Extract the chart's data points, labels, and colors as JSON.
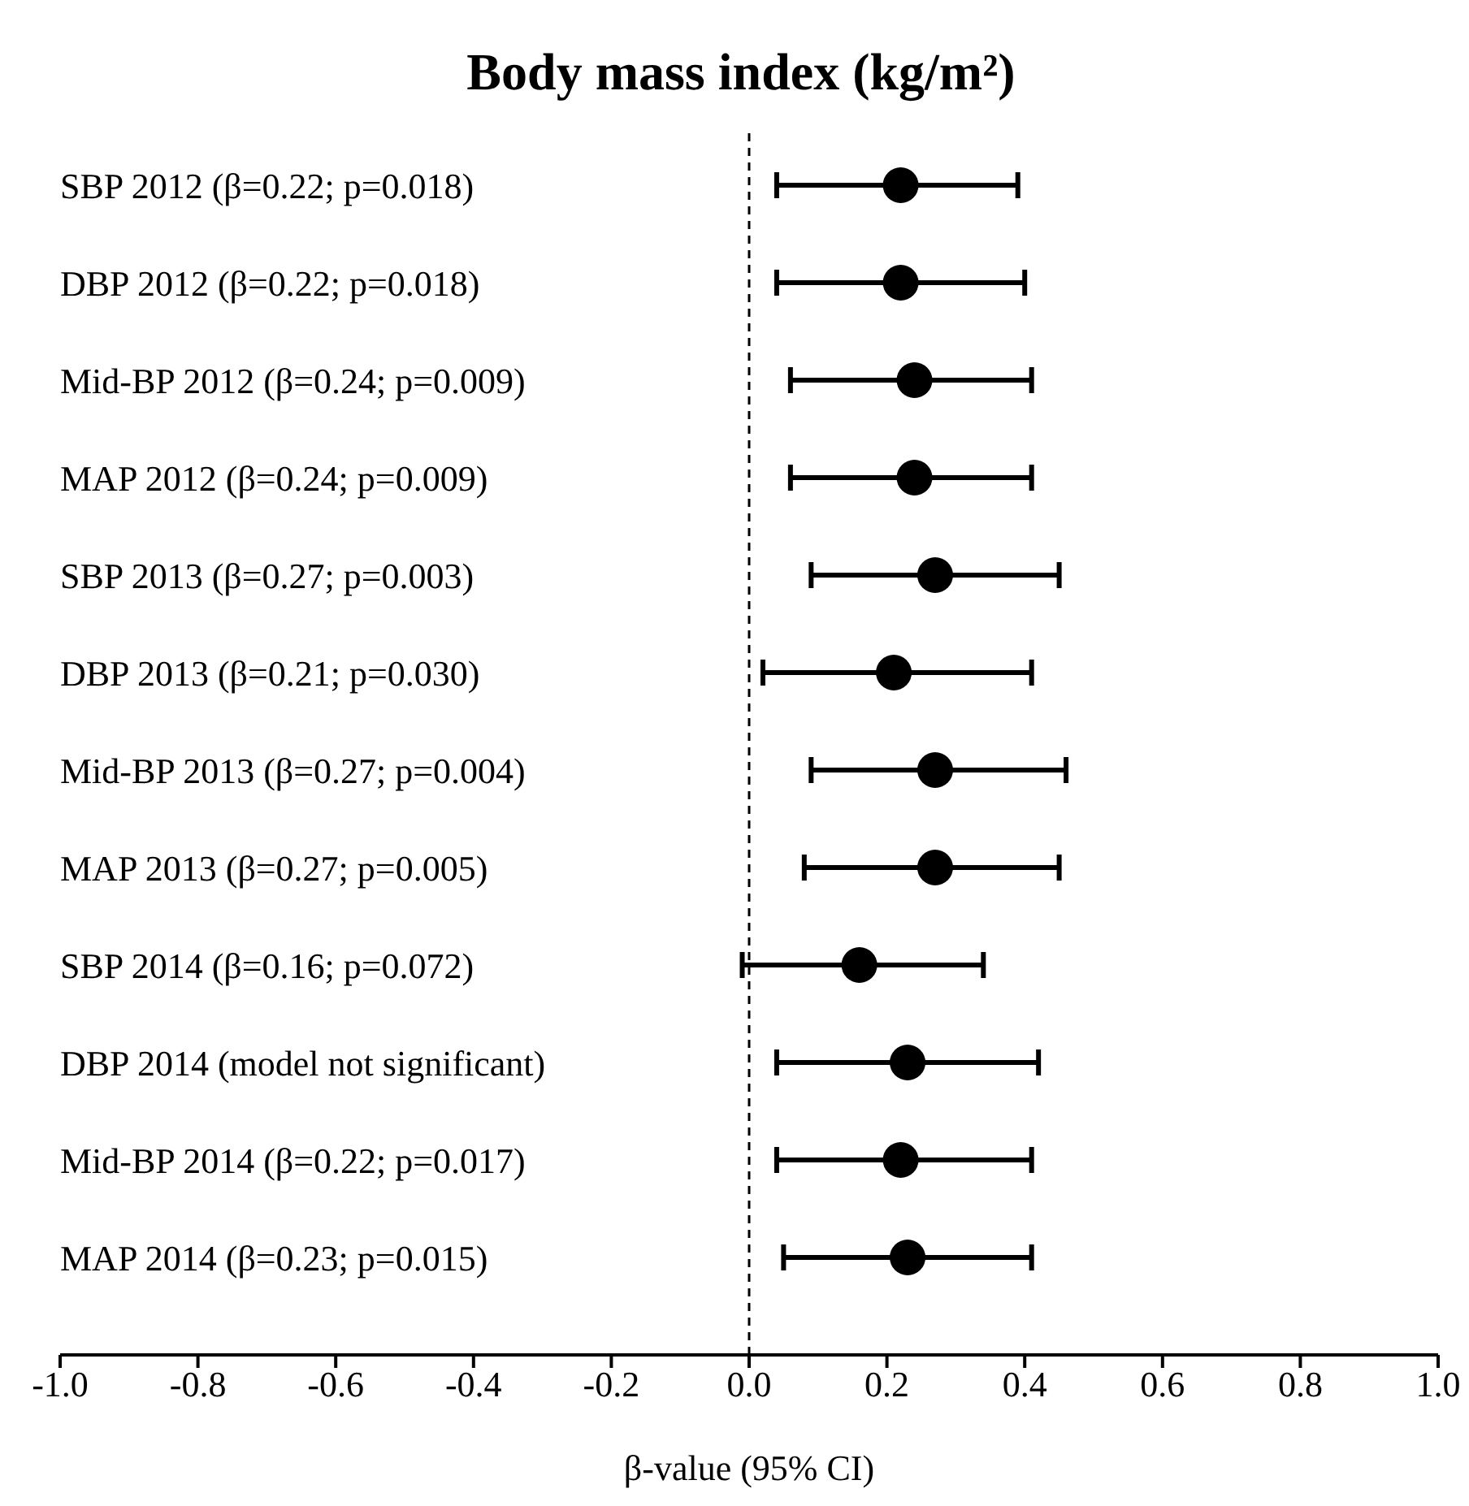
{
  "chart_data": {
    "type": "scatter",
    "title": "Body mass index (kg/m²)",
    "xlabel": "β-value (95% CI)",
    "orientation": "horizontal",
    "marker": "circle",
    "color": "#000000",
    "categories": [
      "SBP 2012 (β=0.22; p=0.018)",
      "DBP 2012 (β=0.22; p=0.018)",
      "Mid-BP 2012 (β=0.24; p=0.009)",
      "MAP 2012 (β=0.24; p=0.009)",
      "SBP 2013 (β=0.27; p=0.003)",
      "DBP 2013 (β=0.21; p=0.030)",
      "Mid-BP 2013 (β=0.27; p=0.004)",
      "MAP 2013 (β=0.27; p=0.005)",
      "SBP 2014 (β=0.16; p=0.072)",
      "DBP 2014 (model not significant)",
      "Mid-BP 2014 (β=0.22; p=0.017)",
      "MAP 2014 (β=0.23; p=0.015)"
    ],
    "values": [
      0.22,
      0.22,
      0.24,
      0.24,
      0.27,
      0.21,
      0.27,
      0.27,
      0.16,
      0.23,
      0.22,
      0.23
    ],
    "errors": [
      [
        0.04,
        0.39
      ],
      [
        0.04,
        0.4
      ],
      [
        0.06,
        0.41
      ],
      [
        0.06,
        0.41
      ],
      [
        0.09,
        0.45
      ],
      [
        0.02,
        0.41
      ],
      [
        0.09,
        0.46
      ],
      [
        0.08,
        0.45
      ],
      [
        -0.01,
        0.34
      ],
      [
        0.04,
        0.42
      ],
      [
        0.04,
        0.41
      ],
      [
        0.05,
        0.41
      ]
    ],
    "xlim": [
      -1,
      1
    ],
    "xticks": [
      {
        "value": -1,
        "label": "-1.0"
      },
      {
        "value": -0.8,
        "label": "-0.8"
      },
      {
        "value": -0.6,
        "label": "-0.6"
      },
      {
        "value": -0.4,
        "label": "-0.4"
      },
      {
        "value": -0.2,
        "label": "-0.2"
      },
      {
        "value": 0,
        "label": "0.0"
      },
      {
        "value": 0.2,
        "label": "0.2"
      },
      {
        "value": 0.4,
        "label": "0.4"
      },
      {
        "value": 0.6,
        "label": "0.6"
      },
      {
        "value": 0.8,
        "label": "0.8"
      },
      {
        "value": 1,
        "label": "1.0"
      }
    ],
    "ref_lines": [
      {
        "axis": "x",
        "value": 0,
        "line_style": "dashed",
        "color": "#000000"
      }
    ]
  }
}
